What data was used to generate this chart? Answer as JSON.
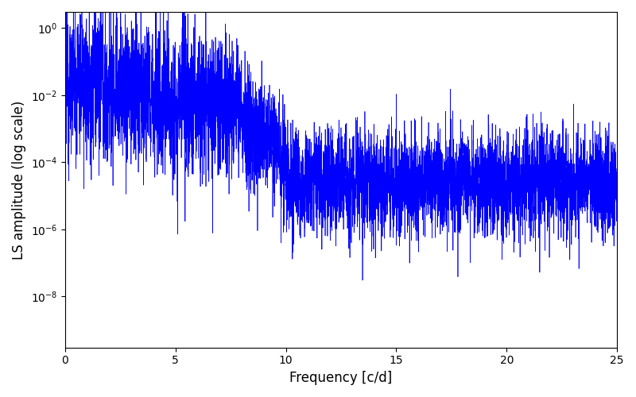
{
  "xlabel": "Frequency [c/d]",
  "ylabel": "LS amplitude (log scale)",
  "line_color": "#0000ff",
  "line_width": 0.5,
  "xlim": [
    0,
    25
  ],
  "ylim": [
    3e-10,
    3.0
  ],
  "yscale": "log",
  "figsize": [
    8.0,
    5.0
  ],
  "dpi": 100,
  "freq_max": 25.0,
  "n_points": 6000,
  "seed": 12345,
  "yticks": [
    1e-08,
    1e-06,
    0.0001,
    0.01,
    1.0
  ],
  "xticks": [
    0,
    5,
    10,
    15,
    20,
    25
  ]
}
